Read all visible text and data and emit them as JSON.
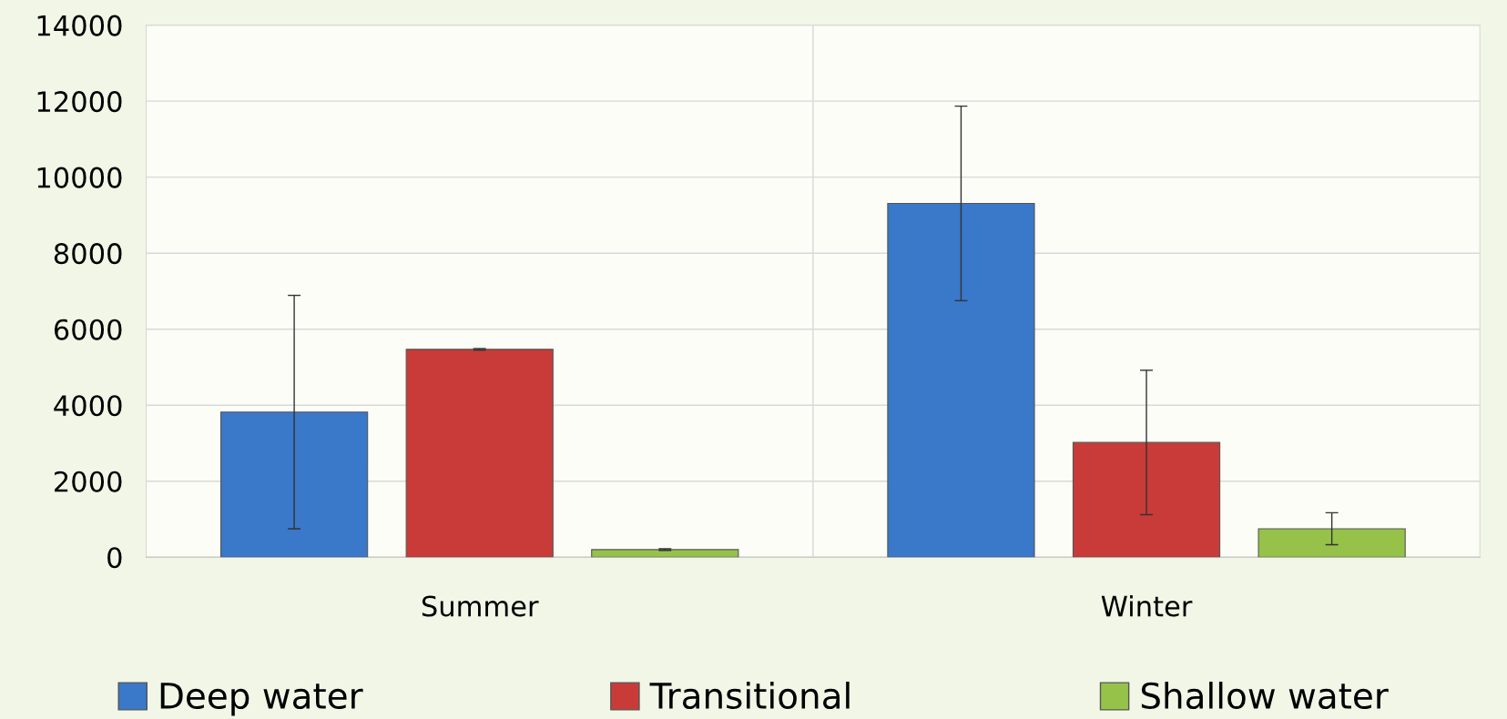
{
  "chart_data": {
    "type": "bar",
    "categories": [
      "Summer",
      "Winter"
    ],
    "series": [
      {
        "name": "Deep water",
        "color": "#3a78c9",
        "values": [
          3820,
          9310
        ],
        "errors": [
          3070,
          2560
        ]
      },
      {
        "name": "Transitional",
        "color": "#c93b38",
        "values": [
          5470,
          3020
        ],
        "errors": [
          20,
          1900
        ]
      },
      {
        "name": "Shallow water",
        "color": "#96c24a",
        "values": [
          200,
          750
        ],
        "errors": [
          20,
          420
        ]
      }
    ],
    "ylim": [
      0,
      14000
    ],
    "yticks": [
      0,
      2000,
      4000,
      6000,
      8000,
      10000,
      12000,
      14000
    ],
    "grid": true,
    "legend": "bottom"
  }
}
